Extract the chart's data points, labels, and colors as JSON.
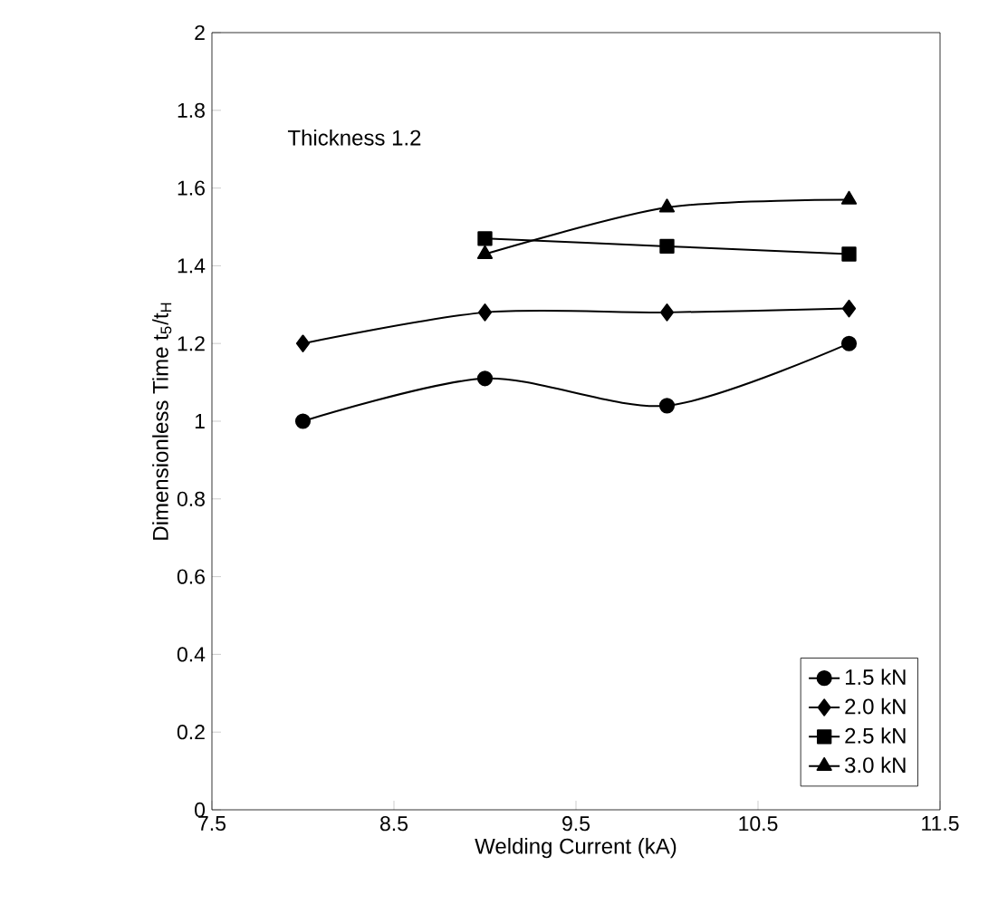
{
  "chart_data": {
    "type": "line",
    "xlabel": "Welding Current (kA)",
    "ylabel": "Dimensionless Time t$_{5}$/t$_{H}$",
    "annotations": [
      "Thickness 1.2"
    ],
    "xlim": [
      7.5,
      11.5
    ],
    "xticks": [
      7.5,
      8.5,
      9.5,
      10.5,
      11.5
    ],
    "ylim": [
      0,
      2
    ],
    "yticks": [
      0,
      0.2,
      0.4,
      0.6,
      0.8,
      1,
      1.2,
      1.4,
      1.6,
      1.8,
      2
    ],
    "legend": "bottom right",
    "series": [
      {
        "name": "1.5 kN",
        "color": "#000000",
        "marker": "circle",
        "x": [
          8,
          9,
          10,
          11
        ],
        "values": [
          1.0,
          1.11,
          1.04,
          1.2
        ]
      },
      {
        "name": "2.0 kN",
        "color": "#000000",
        "marker": "diamond",
        "x": [
          8,
          9,
          10,
          11
        ],
        "values": [
          1.2,
          1.28,
          1.28,
          1.29
        ]
      },
      {
        "name": "2.5 kN",
        "color": "#000000",
        "marker": "square",
        "x": [
          9,
          10,
          11
        ],
        "values": [
          1.47,
          1.45,
          1.43
        ]
      },
      {
        "name": "3.0 kN",
        "color": "#000000",
        "marker": "triangle",
        "x": [
          9,
          10,
          11
        ],
        "values": [
          1.43,
          1.55,
          1.57
        ]
      }
    ]
  }
}
